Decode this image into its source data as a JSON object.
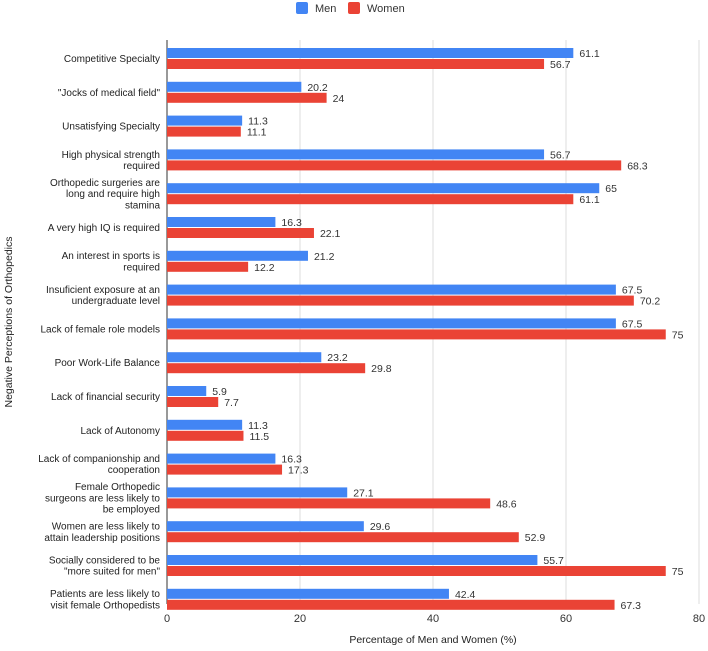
{
  "chart_data": {
    "type": "bar",
    "orientation": "horizontal",
    "categories": [
      "Competitive Specialty",
      "\"Jocks of medical field\"",
      "Unsatisfying Specialty",
      "High physical strength required",
      "Orthopedic surgeries are long and require high stamina",
      "A very high IQ is required",
      "An interest in sports is required",
      "Insuficient exposure at an undergraduate level",
      "Lack of female role models",
      "Poor Work-Life Balance",
      "Lack of financial security",
      "Lack of Autonomy",
      "Lack of companionship and cooperation",
      "Female Orthopedic surgeons are less likely to be employed",
      "Women are less likely to attain leadership positions",
      "Socially considered to be \"more suited for men\"",
      "Patients are less likely to visit female Orthopedists"
    ],
    "category_lines": [
      [
        "Competitive Specialty"
      ],
      [
        "\"Jocks of medical field\""
      ],
      [
        "Unsatisfying Specialty"
      ],
      [
        "High physical strength",
        "required"
      ],
      [
        "Orthopedic surgeries are",
        "long and require high",
        "stamina"
      ],
      [
        "A very high IQ is required"
      ],
      [
        "An interest in sports is",
        "required"
      ],
      [
        "Insuficient exposure at an",
        "undergraduate level"
      ],
      [
        "Lack of female role models"
      ],
      [
        "Poor Work-Life Balance"
      ],
      [
        "Lack of financial security"
      ],
      [
        "Lack of Autonomy"
      ],
      [
        "Lack of companionship and",
        "cooperation"
      ],
      [
        "Female Orthopedic",
        "surgeons are less likely to",
        "be employed"
      ],
      [
        "Women are less likely to",
        "attain leadership positions"
      ],
      [
        "Socially considered to be",
        "\"more suited for men\""
      ],
      [
        "Patients are less likely to",
        "visit female Orthopedists"
      ]
    ],
    "series": [
      {
        "name": "Men",
        "color": "#4285f4",
        "values": [
          61.1,
          20.2,
          11.3,
          56.7,
          65,
          16.3,
          21.2,
          67.5,
          67.5,
          23.2,
          5.9,
          11.3,
          16.3,
          27.1,
          29.6,
          55.7,
          42.4
        ]
      },
      {
        "name": "Women",
        "color": "#ea4335",
        "values": [
          56.7,
          24,
          11.1,
          68.3,
          61.1,
          22.1,
          12.2,
          70.2,
          75,
          29.8,
          7.7,
          11.5,
          17.3,
          48.6,
          52.9,
          75,
          67.3
        ]
      }
    ],
    "xlabel": "Percentage of Men and Women (%)",
    "ylabel": "Negative Perceptions of Orthopedics",
    "xlim": [
      0,
      80
    ],
    "xticks": [
      0,
      20,
      40,
      60,
      80
    ],
    "grid": true,
    "legend_position": "top-center"
  }
}
